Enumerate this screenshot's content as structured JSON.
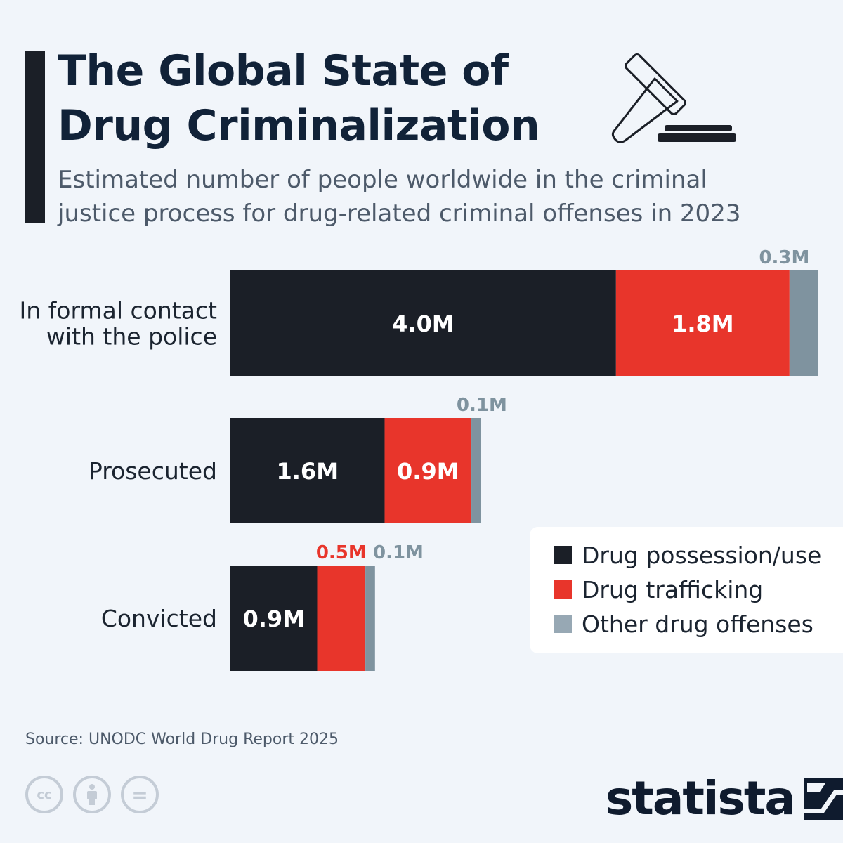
{
  "header": {
    "title_line1": "The Global State of",
    "title_line2": "Drug Criminalization",
    "subtitle_line1": "Estimated number of people worldwide in the criminal",
    "subtitle_line2": "justice process for drug-related criminal offenses in 2023"
  },
  "icons": {
    "header_icon": "gavel-icon",
    "license_icons": [
      "cc-icon",
      "by-attribution-icon",
      "nd-no-derivatives-icon"
    ],
    "brand_icon": "statista-logo-icon"
  },
  "colors": {
    "possession": "#1b1f27",
    "trafficking": "#e8352b",
    "other": "#7f939f",
    "title": "#112238",
    "background": "#f1f5fa"
  },
  "chart_data": {
    "type": "bar",
    "orientation": "horizontal",
    "stacked": true,
    "categories": [
      {
        "lines": [
          "In formal contact",
          "with the police"
        ]
      },
      {
        "lines": [
          "Prosecuted"
        ]
      },
      {
        "lines": [
          "Convicted"
        ]
      }
    ],
    "series": [
      {
        "name": "Drug possession/use",
        "values": [
          4.0,
          1.6,
          0.9
        ],
        "labels": [
          "4.0M",
          "1.6M",
          "0.9M"
        ],
        "color_key": "possession",
        "label_position": "inside"
      },
      {
        "name": "Drug trafficking",
        "values": [
          1.8,
          0.9,
          0.5
        ],
        "labels": [
          "1.8M",
          "0.9M",
          "0.5M"
        ],
        "color_key": "trafficking",
        "label_position": [
          "inside",
          "inside",
          "above"
        ]
      },
      {
        "name": "Other drug offenses",
        "values": [
          0.3,
          0.1,
          0.1
        ],
        "labels": [
          "0.3M",
          "0.1M",
          "0.1M"
        ],
        "color_key": "other",
        "label_position": "above"
      }
    ],
    "unit": "M",
    "xlim": [
      0,
      6.1
    ],
    "grid": false,
    "legend_position": "bottom-right"
  },
  "footer": {
    "source": "Source: UNODC World Drug Report 2025",
    "brand": "statista",
    "cc_text": "cc",
    "eq_text": "="
  }
}
